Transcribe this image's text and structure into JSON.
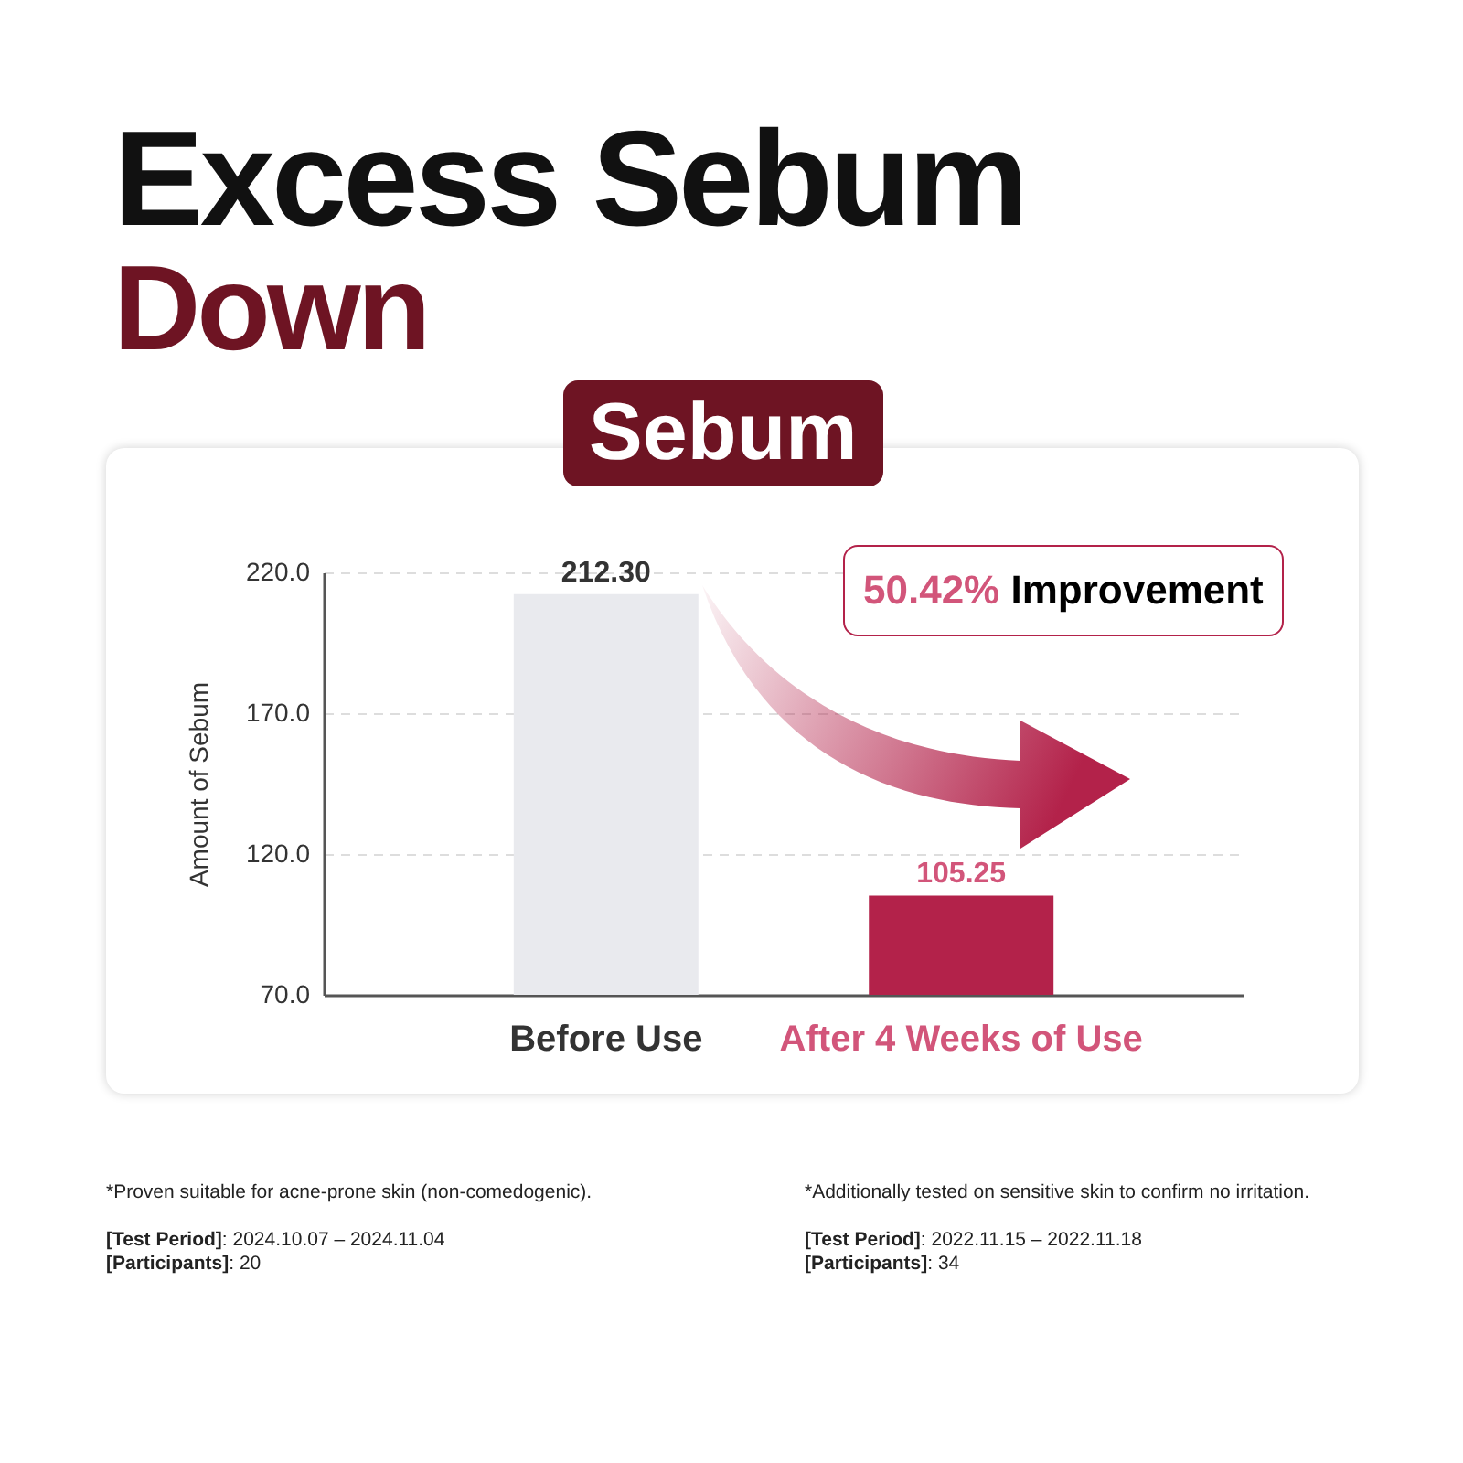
{
  "chart_data": {
    "type": "bar",
    "title": "Excess Sebum",
    "subtitle": "Down",
    "ylabel": "Amount of Sebum",
    "categories": [
      "Before Use",
      "After 4 Weeks of Use"
    ],
    "values": [
      212.3,
      105.25
    ],
    "colors": [
      "#e9eaee",
      "#b3224a"
    ],
    "value_labels": [
      "212.30",
      "105.25"
    ],
    "ylim": [
      70,
      220
    ],
    "yticks": [
      {
        "value": 70,
        "label": "70.0"
      },
      {
        "value": 120,
        "label": "120.0"
      },
      {
        "value": 170,
        "label": "170.0"
      },
      {
        "value": 220,
        "label": "220.0"
      }
    ],
    "grid": "y",
    "annotations": [
      "Sebum",
      "50.42% Improvement",
      "*Proven suitable for acne-prone skin (non-comedogenic).",
      "[Test Period]: 2024.10.07 – 2024.11.04",
      "[Participants]: 20",
      "*Additionally tested on sensitive skin to confirm no irritation.",
      "[Test Period]: 2022.11.15 – 2022.11.18",
      "[Participants]: 34"
    ]
  }
}
